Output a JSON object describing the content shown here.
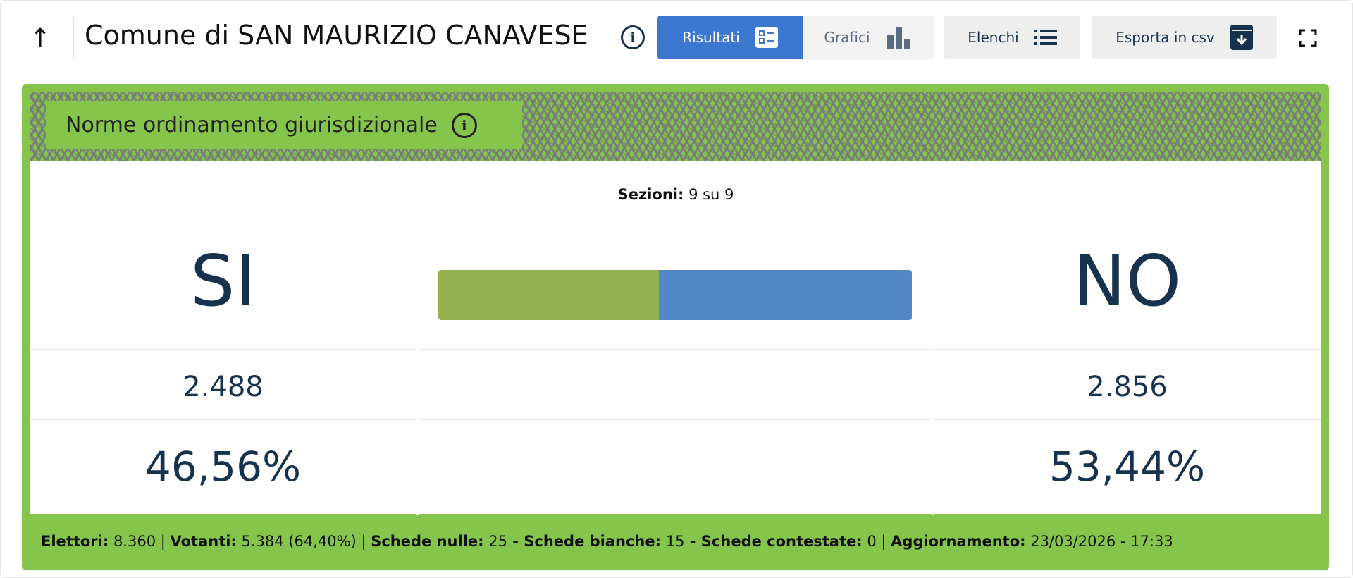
{
  "header": {
    "title": "Comune di SAN MAURIZIO CANAVESE",
    "buttons": [
      {
        "label": "Risultati",
        "icon": "list-detail-icon",
        "active": true
      },
      {
        "label": "Grafici",
        "icon": "bar-chart-icon"
      },
      {
        "label": "Elenchi",
        "icon": "list-icon"
      },
      {
        "label": "Esporta in csv",
        "icon": "download-archive-icon"
      }
    ]
  },
  "section": {
    "title": "Norme ordinamento giurisdizionale",
    "sezioni_label": "Sezioni:",
    "sezioni_value": "9 su 9"
  },
  "results": {
    "yes": {
      "label": "SI",
      "votes": "2.488",
      "percent": "46,56%",
      "fraction": 0.4656,
      "color": "#94b24f"
    },
    "no": {
      "label": "NO",
      "votes": "2.856",
      "percent": "53,44%",
      "fraction": 0.5344,
      "color": "#5287c8"
    }
  },
  "footer": {
    "elettori_label": "Elettori:",
    "elettori": "8.360",
    "votanti_label": "Votanti:",
    "votanti": "5.384 (64,40%)",
    "nulle_label": "Schede nulle:",
    "nulle": "25",
    "bianche_label": "Schede bianche:",
    "bianche": "15",
    "contestate_label": "Schede contestate:",
    "contestate": "0",
    "aggiornamento_label": "Aggiornamento:",
    "aggiornamento": "23/03/2026 - 17:33",
    "sep1": " | ",
    "sep2": " - "
  },
  "colors": {
    "accent": "#3c78cf",
    "card": "#86c54b",
    "text": "#17324d"
  }
}
